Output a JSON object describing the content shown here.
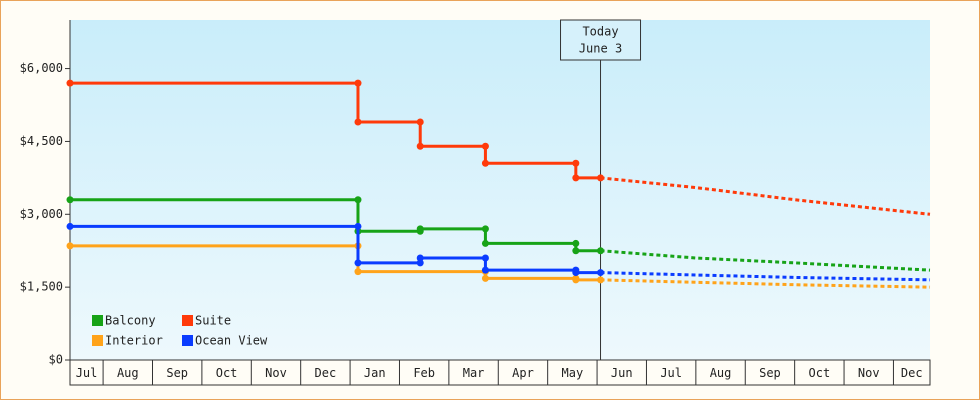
{
  "chart_data": {
    "type": "line",
    "xlim": [
      0.33,
      17.74
    ],
    "ylim": [
      0,
      7000
    ],
    "xticks": [
      {
        "value": 0,
        "label": "Jul"
      },
      {
        "value": 1,
        "label": "Aug"
      },
      {
        "value": 2,
        "label": "Sep"
      },
      {
        "value": 3,
        "label": "Oct"
      },
      {
        "value": 4,
        "label": "Nov"
      },
      {
        "value": 5,
        "label": "Dec"
      },
      {
        "value": 6,
        "label": "Jan"
      },
      {
        "value": 7,
        "label": "Feb"
      },
      {
        "value": 8,
        "label": "Mar"
      },
      {
        "value": 9,
        "label": "Apr"
      },
      {
        "value": 10,
        "label": "May"
      },
      {
        "value": 11,
        "label": "Jun"
      },
      {
        "value": 12,
        "label": "Jul"
      },
      {
        "value": 13,
        "label": "Aug"
      },
      {
        "value": 14,
        "label": "Sep"
      },
      {
        "value": 15,
        "label": "Oct"
      },
      {
        "value": 16,
        "label": "Nov"
      },
      {
        "value": 17,
        "label": "Dec"
      }
    ],
    "yticks": [
      {
        "value": 0,
        "label": "$0"
      },
      {
        "value": 1500,
        "label": "$1,500"
      },
      {
        "value": 3000,
        "label": "$3,000"
      },
      {
        "value": 4500,
        "label": "$4,500"
      },
      {
        "value": 6000,
        "label": "$6,000"
      }
    ],
    "today": {
      "x": 11.07,
      "label": [
        "Today",
        "June 3"
      ]
    },
    "legend": "lower left",
    "series": [
      {
        "name": "Balcony",
        "color": "#17a317",
        "x": [
          0.33,
          6.16,
          6.16,
          7.42,
          7.42,
          8.74,
          8.74,
          10.57,
          10.57,
          11.07
        ],
        "values": [
          3300,
          3300,
          2650,
          2650,
          2700,
          2700,
          2400,
          2400,
          2250,
          2250
        ],
        "forecast": {
          "x": [
            11.07,
            13,
            15,
            17.74
          ],
          "values": [
            2250,
            2100,
            2000,
            1850
          ]
        }
      },
      {
        "name": "Suite",
        "color": "#ff3a0a",
        "x": [
          0.33,
          6.16,
          6.16,
          7.42,
          7.42,
          8.74,
          8.74,
          10.57,
          10.57,
          11.07
        ],
        "values": [
          5700,
          5700,
          4900,
          4900,
          4400,
          4400,
          4050,
          4050,
          3750,
          3750
        ],
        "forecast": {
          "x": [
            11.07,
            13,
            15,
            17.74
          ],
          "values": [
            3750,
            3550,
            3300,
            3000
          ]
        }
      },
      {
        "name": "Interior",
        "color": "#ffa31a",
        "x": [
          0.33,
          6.16,
          6.16,
          8.74,
          8.74,
          10.57,
          10.57,
          11.07
        ],
        "values": [
          2350,
          2350,
          1820,
          1820,
          1680,
          1680,
          1650,
          1650
        ],
        "forecast": {
          "x": [
            11.07,
            13,
            15,
            17.74
          ],
          "values": [
            1650,
            1600,
            1550,
            1500
          ]
        }
      },
      {
        "name": "Ocean View",
        "color": "#0a3cff",
        "x": [
          0.33,
          6.16,
          6.16,
          7.42,
          7.42,
          8.74,
          8.74,
          10.57,
          10.57,
          11.07
        ],
        "values": [
          2750,
          2750,
          2000,
          2000,
          2100,
          2100,
          1850,
          1850,
          1800,
          1800
        ],
        "forecast": {
          "x": [
            11.07,
            13,
            15,
            17.74
          ],
          "values": [
            1800,
            1750,
            1700,
            1650
          ]
        }
      }
    ]
  }
}
